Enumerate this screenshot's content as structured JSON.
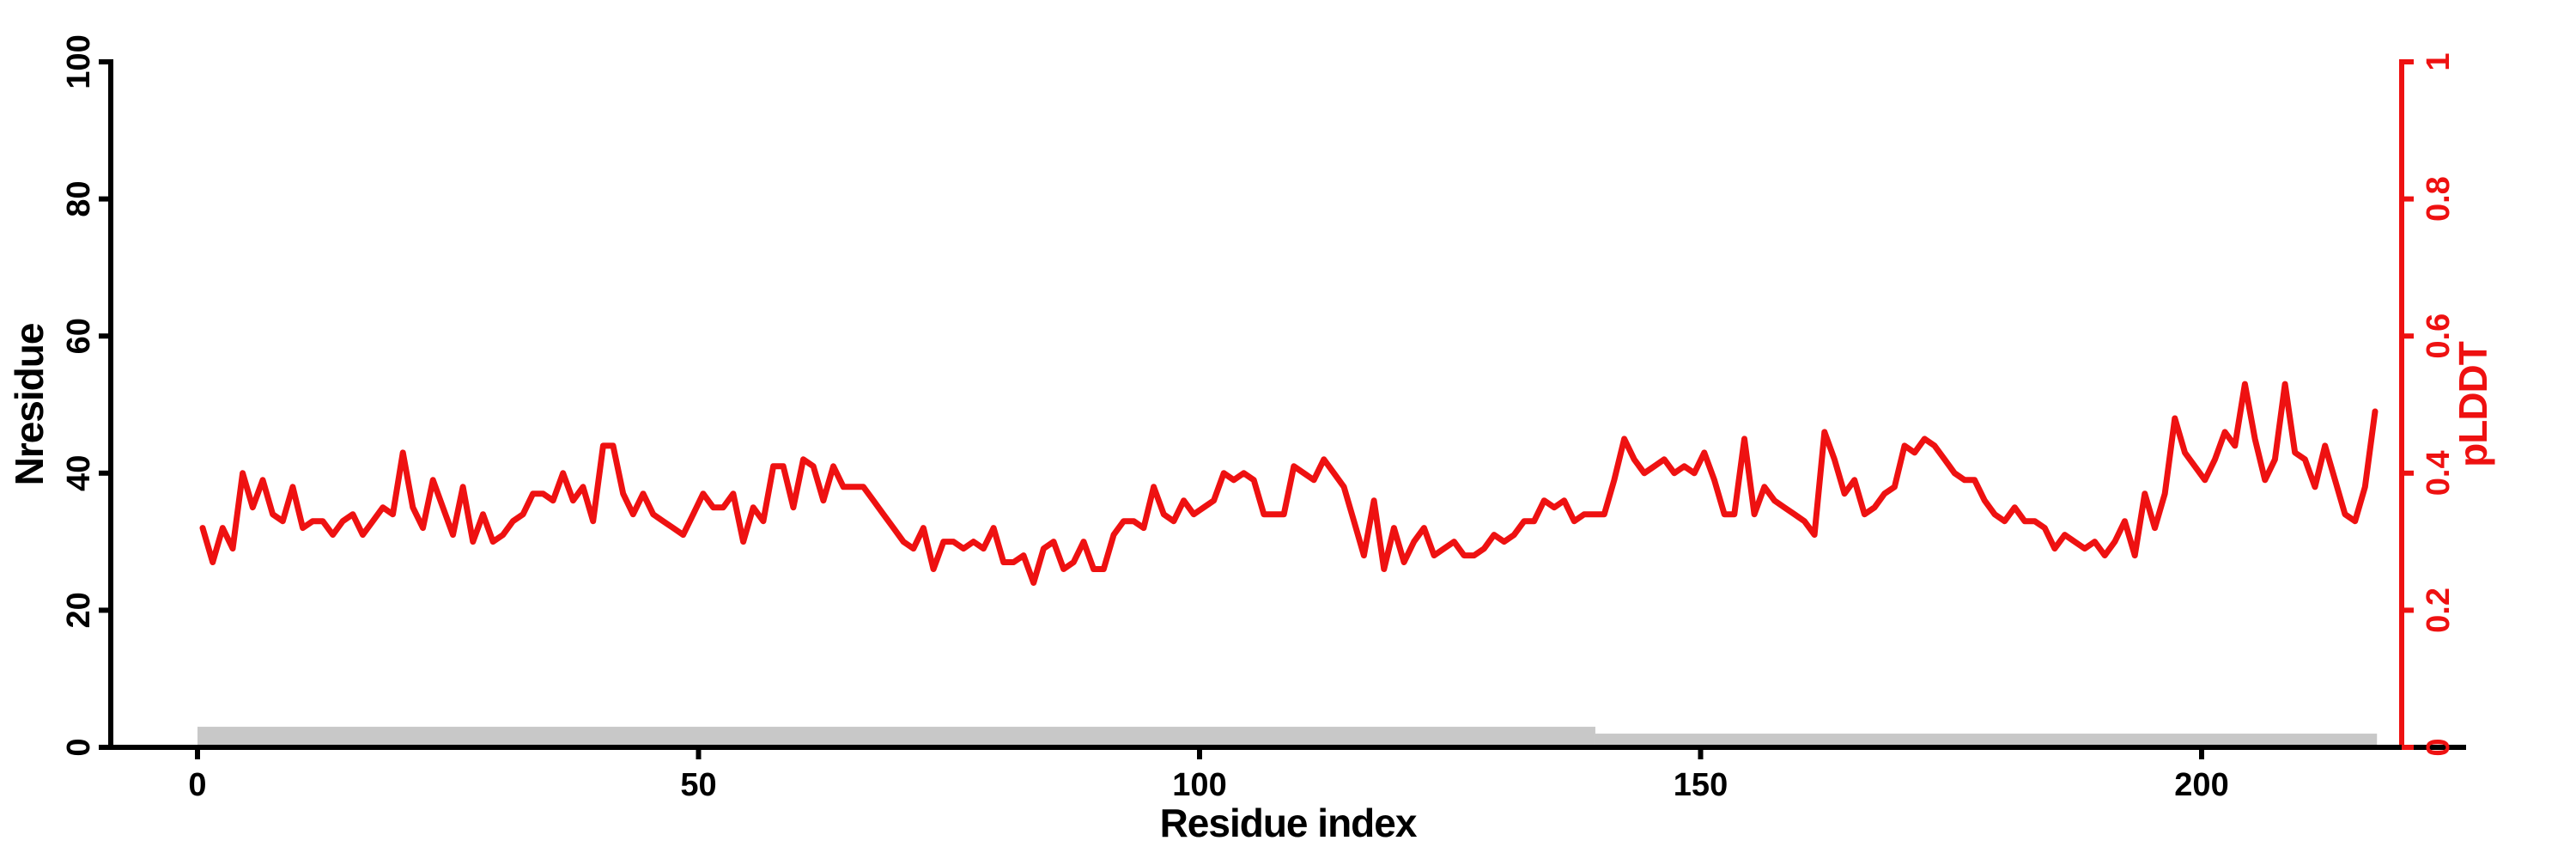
{
  "figure": {
    "background": "#ffffff",
    "accent_red": "#ee1111",
    "bar_gray": "#c8c8c8",
    "axis_black": "#000000"
  },
  "chart_data": {
    "type": "line",
    "title": "",
    "xlabel": "Residue index",
    "x_axis": {
      "tick_labels": [
        "0",
        "50",
        "100",
        "150",
        "200"
      ],
      "tick_values": [
        0,
        50,
        100,
        150,
        200
      ],
      "range_shown": [
        0,
        220
      ]
    },
    "left_axis": {
      "label": "Nresidue",
      "tick_labels": [
        "0",
        "20",
        "40",
        "60",
        "80",
        "100"
      ],
      "tick_values": [
        0,
        20,
        40,
        60,
        80,
        100
      ],
      "range": [
        0,
        100
      ],
      "color": "#000000"
    },
    "right_axis": {
      "label": "pLDDT",
      "tick_labels": [
        "0",
        "0.2",
        "0.4",
        "0.6",
        "0.8",
        "1"
      ],
      "tick_values": [
        0,
        0.2,
        0.4,
        0.6,
        0.8,
        1
      ],
      "range": [
        0,
        1
      ],
      "color": "#ee1111"
    },
    "grid": false,
    "legend": "none",
    "series": [
      {
        "name": "pLDDT",
        "type": "line",
        "axis": "right",
        "color": "#ee1111",
        "x_start_residue": 1,
        "values": [
          0.32,
          0.27,
          0.32,
          0.29,
          0.4,
          0.35,
          0.39,
          0.34,
          0.33,
          0.38,
          0.32,
          0.33,
          0.33,
          0.31,
          0.33,
          0.34,
          0.31,
          0.33,
          0.35,
          0.34,
          0.43,
          0.35,
          0.32,
          0.39,
          0.35,
          0.31,
          0.38,
          0.3,
          0.34,
          0.3,
          0.31,
          0.33,
          0.34,
          0.37,
          0.37,
          0.36,
          0.4,
          0.36,
          0.38,
          0.33,
          0.44,
          0.44,
          0.37,
          0.34,
          0.37,
          0.34,
          0.33,
          0.32,
          0.31,
          0.34,
          0.37,
          0.35,
          0.35,
          0.37,
          0.3,
          0.35,
          0.33,
          0.41,
          0.41,
          0.35,
          0.42,
          0.41,
          0.36,
          0.41,
          0.38,
          0.38,
          0.38,
          0.36,
          0.34,
          0.32,
          0.3,
          0.29,
          0.32,
          0.26,
          0.3,
          0.3,
          0.29,
          0.3,
          0.29,
          0.32,
          0.27,
          0.27,
          0.28,
          0.24,
          0.29,
          0.3,
          0.26,
          0.27,
          0.3,
          0.26,
          0.26,
          0.31,
          0.33,
          0.33,
          0.32,
          0.38,
          0.34,
          0.33,
          0.36,
          0.34,
          0.35,
          0.36,
          0.4,
          0.39,
          0.4,
          0.39,
          0.34,
          0.34,
          0.34,
          0.41,
          0.4,
          0.39,
          0.42,
          0.4,
          0.38,
          0.33,
          0.28,
          0.36,
          0.26,
          0.32,
          0.27,
          0.3,
          0.32,
          0.28,
          0.29,
          0.3,
          0.28,
          0.28,
          0.29,
          0.31,
          0.3,
          0.31,
          0.33,
          0.33,
          0.36,
          0.35,
          0.36,
          0.33,
          0.34,
          0.34,
          0.34,
          0.39,
          0.45,
          0.42,
          0.4,
          0.41,
          0.42,
          0.4,
          0.41,
          0.4,
          0.43,
          0.39,
          0.34,
          0.34,
          0.45,
          0.34,
          0.38,
          0.36,
          0.35,
          0.34,
          0.33,
          0.31,
          0.46,
          0.42,
          0.37,
          0.39,
          0.34,
          0.35,
          0.37,
          0.38,
          0.44,
          0.43,
          0.45,
          0.44,
          0.42,
          0.4,
          0.39,
          0.39,
          0.36,
          0.34,
          0.33,
          0.35,
          0.33,
          0.33,
          0.32,
          0.29,
          0.31,
          0.3,
          0.29,
          0.3,
          0.28,
          0.3,
          0.33,
          0.28,
          0.37,
          0.32,
          0.37,
          0.48,
          0.43,
          0.41,
          0.39,
          0.42,
          0.46,
          0.44,
          0.53,
          0.45,
          0.39,
          0.42,
          0.53,
          0.43,
          0.42,
          0.38,
          0.44,
          0.39,
          0.34,
          0.33,
          0.38,
          0.49
        ]
      },
      {
        "name": "Nresidue",
        "type": "step-bar",
        "axis": "left",
        "color": "#c8c8c8",
        "segments": [
          {
            "residue_from": 0,
            "residue_to": 139.5,
            "value": 3
          },
          {
            "residue_from": 139.5,
            "residue_to": 217.5,
            "value": 2
          }
        ]
      }
    ]
  }
}
